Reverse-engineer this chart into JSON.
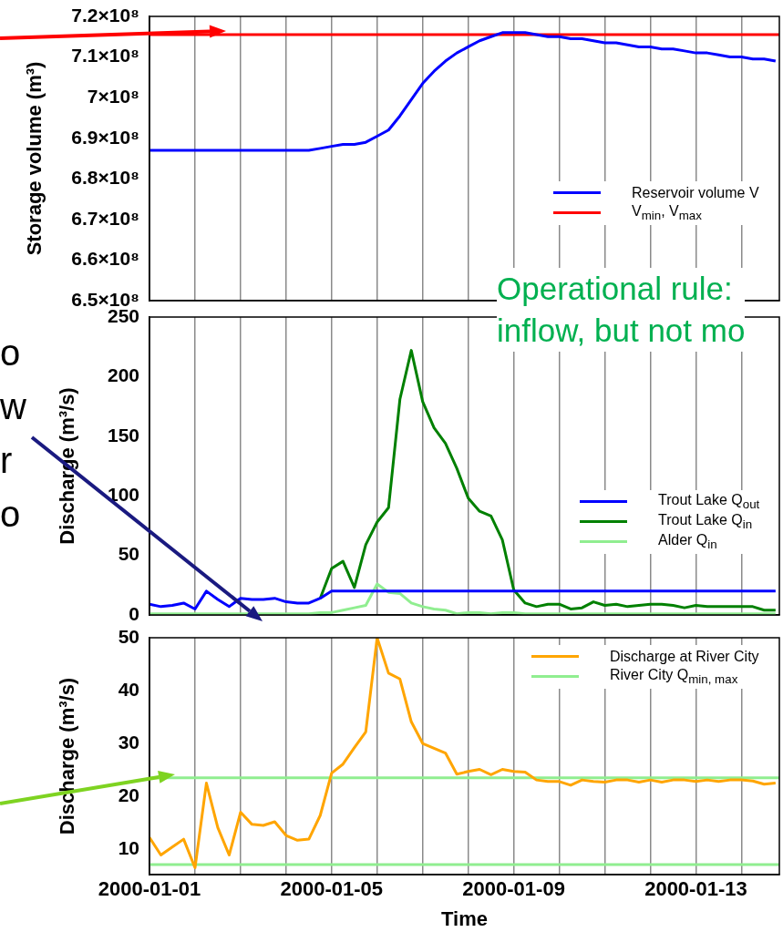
{
  "chart_data": [
    {
      "type": "line",
      "ylabel": "Storage volume (m³)",
      "x": [
        "2000-01-01T00:00",
        "2000-01-01T06:00",
        "2000-01-01T12:00",
        "2000-01-01T18:00",
        "2000-01-02T00:00",
        "2000-01-02T06:00",
        "2000-01-02T12:00",
        "2000-01-02T18:00",
        "2000-01-03T00:00",
        "2000-01-03T06:00",
        "2000-01-03T12:00",
        "2000-01-03T18:00",
        "2000-01-04T00:00",
        "2000-01-04T06:00",
        "2000-01-04T12:00",
        "2000-01-04T18:00",
        "2000-01-05T00:00",
        "2000-01-05T06:00",
        "2000-01-05T12:00",
        "2000-01-05T18:00",
        "2000-01-06T00:00",
        "2000-01-06T06:00",
        "2000-01-06T12:00",
        "2000-01-06T18:00",
        "2000-01-07T00:00",
        "2000-01-07T06:00",
        "2000-01-07T12:00",
        "2000-01-07T18:00",
        "2000-01-08T00:00",
        "2000-01-08T06:00",
        "2000-01-08T12:00",
        "2000-01-08T18:00",
        "2000-01-09T00:00",
        "2000-01-09T06:00",
        "2000-01-09T12:00",
        "2000-01-09T18:00",
        "2000-01-10T00:00",
        "2000-01-10T06:00",
        "2000-01-10T12:00",
        "2000-01-10T18:00",
        "2000-01-11T00:00",
        "2000-01-11T06:00",
        "2000-01-11T12:00",
        "2000-01-11T18:00",
        "2000-01-12T00:00",
        "2000-01-12T06:00",
        "2000-01-12T12:00",
        "2000-01-12T18:00",
        "2000-01-13T00:00",
        "2000-01-13T06:00",
        "2000-01-13T12:00",
        "2000-01-13T18:00",
        "2000-01-14T00:00",
        "2000-01-14T06:00",
        "2000-01-14T12:00",
        "2000-01-14T18:00"
      ],
      "xlim": [
        "2000-01-01",
        "2000-01-14T20:00"
      ],
      "xticks": [
        "2000-01-01",
        {
          "value": "2000-01-02",
          "label": null
        },
        {
          "value": "2000-01-03",
          "label": null
        },
        {
          "value": "2000-01-04",
          "label": null
        },
        "2000-01-05",
        {
          "value": "2000-01-06",
          "label": null
        },
        {
          "value": "2000-01-07",
          "label": null
        },
        {
          "value": "2000-01-08",
          "label": null
        },
        "2000-01-09",
        {
          "value": "2000-01-10",
          "label": null
        },
        {
          "value": "2000-01-11",
          "label": null
        },
        {
          "value": "2000-01-12",
          "label": null
        },
        "2000-01-13",
        {
          "value": "2000-01-14",
          "label": null
        }
      ],
      "ylim": [
        650000000,
        720000000
      ],
      "yticks": [
        {
          "value": 650000000,
          "label": "6.5×10⁸"
        },
        {
          "value": 660000000,
          "label": "6.6×10⁸"
        },
        {
          "value": 670000000,
          "label": "6.7×10⁸"
        },
        {
          "value": 680000000,
          "label": "6.8×10⁸"
        },
        {
          "value": 690000000,
          "label": "6.9×10⁸"
        },
        {
          "value": 700000000,
          "label": "7×10⁸"
        },
        {
          "value": 710000000,
          "label": "7.1×10⁸"
        },
        {
          "value": 720000000,
          "label": "7.2×10⁸"
        }
      ],
      "series": [
        {
          "name": "Reservoir volume V",
          "color": "#0000ff",
          "values": [
            687000000,
            687000000,
            687000000,
            687000000,
            687000000,
            687000000,
            687000000,
            687000000,
            687000000,
            687000000,
            687000000,
            687000000,
            687000000,
            687000000,
            687000000,
            687500000,
            688000000,
            688500000,
            688500000,
            689000000,
            690500000,
            692000000,
            695500000,
            699500000,
            703500000,
            706500000,
            709000000,
            711000000,
            712500000,
            714000000,
            715000000,
            716000000,
            716000000,
            716000000,
            715500000,
            715000000,
            715000000,
            714500000,
            714500000,
            714000000,
            713500000,
            713500000,
            713000000,
            712500000,
            712500000,
            712000000,
            712000000,
            711500000,
            711000000,
            711000000,
            710500000,
            710000000,
            710000000,
            709500000,
            709500000,
            709000000
          ]
        },
        {
          "name": "V$_{min}$, V$_{max}$",
          "color": "#ff0000",
          "x": [
            "2000-01-01",
            "2000-01-14T20:00"
          ],
          "values": [
            715500000,
            715500000
          ]
        }
      ],
      "grid": "x",
      "legend": "right",
      "tick_labels": "y"
    },
    {
      "type": "line",
      "ylabel": "Discharge (m³/s)",
      "x": [
        "2000-01-01T00:00",
        "2000-01-01T06:00",
        "2000-01-01T12:00",
        "2000-01-01T18:00",
        "2000-01-02T00:00",
        "2000-01-02T06:00",
        "2000-01-02T12:00",
        "2000-01-02T18:00",
        "2000-01-03T00:00",
        "2000-01-03T06:00",
        "2000-01-03T12:00",
        "2000-01-03T18:00",
        "2000-01-04T00:00",
        "2000-01-04T06:00",
        "2000-01-04T12:00",
        "2000-01-04T18:00",
        "2000-01-05T00:00",
        "2000-01-05T06:00",
        "2000-01-05T12:00",
        "2000-01-05T18:00",
        "2000-01-06T00:00",
        "2000-01-06T06:00",
        "2000-01-06T12:00",
        "2000-01-06T18:00",
        "2000-01-07T00:00",
        "2000-01-07T06:00",
        "2000-01-07T12:00",
        "2000-01-07T18:00",
        "2000-01-08T00:00",
        "2000-01-08T06:00",
        "2000-01-08T12:00",
        "2000-01-08T18:00",
        "2000-01-09T00:00",
        "2000-01-09T06:00",
        "2000-01-09T12:00",
        "2000-01-09T18:00",
        "2000-01-10T00:00",
        "2000-01-10T06:00",
        "2000-01-10T12:00",
        "2000-01-10T18:00",
        "2000-01-11T00:00",
        "2000-01-11T06:00",
        "2000-01-11T12:00",
        "2000-01-11T18:00",
        "2000-01-12T00:00",
        "2000-01-12T06:00",
        "2000-01-12T12:00",
        "2000-01-12T18:00",
        "2000-01-13T00:00",
        "2000-01-13T06:00",
        "2000-01-13T12:00",
        "2000-01-13T18:00",
        "2000-01-14T00:00",
        "2000-01-14T06:00",
        "2000-01-14T12:00",
        "2000-01-14T18:00"
      ],
      "xlim": [
        "2000-01-01",
        "2000-01-14T20:00"
      ],
      "xticks": [
        "2000-01-01",
        {
          "value": "2000-01-02",
          "label": null
        },
        {
          "value": "2000-01-03",
          "label": null
        },
        {
          "value": "2000-01-04",
          "label": null
        },
        "2000-01-05",
        {
          "value": "2000-01-06",
          "label": null
        },
        {
          "value": "2000-01-07",
          "label": null
        },
        {
          "value": "2000-01-08",
          "label": null
        },
        "2000-01-09",
        {
          "value": "2000-01-10",
          "label": null
        },
        {
          "value": "2000-01-11",
          "label": null
        },
        {
          "value": "2000-01-12",
          "label": null
        },
        "2000-01-13",
        {
          "value": "2000-01-14",
          "label": null
        }
      ],
      "ylim": [
        0,
        250
      ],
      "yticks": [
        0,
        50,
        100,
        150,
        200,
        250
      ],
      "series": [
        {
          "name": "Trout Lake Q$_{out}$",
          "color": "#0000ff",
          "values": [
            9,
            7,
            8,
            10,
            5,
            20,
            13,
            7,
            14,
            13,
            13,
            14,
            11,
            10,
            10,
            14,
            20,
            20,
            20,
            20,
            20,
            20,
            20,
            20,
            20,
            20,
            20,
            20,
            20,
            20,
            20,
            20,
            20,
            20,
            20,
            20,
            20,
            20,
            20,
            20,
            20,
            20,
            20,
            20,
            20,
            20,
            20,
            20,
            20,
            20,
            20,
            20,
            20,
            20,
            20,
            20
          ]
        },
        {
          "name": "Trout Lake Q$_{in}$",
          "color": "#008000",
          "values": [
            null,
            null,
            null,
            null,
            null,
            null,
            null,
            null,
            null,
            null,
            null,
            null,
            null,
            null,
            null,
            14,
            39,
            45,
            23,
            59,
            78,
            90,
            181,
            222,
            179,
            157,
            144,
            123,
            98,
            87,
            83,
            63,
            21,
            10,
            7,
            9,
            9,
            5,
            6,
            11,
            8,
            9,
            7,
            8,
            9,
            9,
            8,
            6,
            8,
            7,
            7,
            7,
            7,
            7,
            4,
            4
          ]
        },
        {
          "name": "Alder Q$_{in}$",
          "color": "#90ee90",
          "values": [
            1,
            1,
            1,
            1,
            1,
            1,
            1,
            1,
            1,
            1,
            1,
            1,
            1,
            1,
            1,
            2,
            2,
            4,
            6,
            8,
            26,
            19,
            18,
            10,
            7,
            5,
            4,
            1,
            2,
            2,
            1,
            2,
            2,
            1,
            1,
            1,
            1,
            1,
            1,
            1,
            1,
            1,
            1,
            1,
            1,
            1,
            1,
            1,
            1,
            1,
            1,
            1,
            1,
            1,
            1,
            1
          ]
        }
      ],
      "annotations": [
        "Operational rule:\ninflow, but not mo",
        "o\nw\nr\no"
      ],
      "grid": "x",
      "legend": "right",
      "tick_labels": "y"
    },
    {
      "type": "line",
      "ylabel": "Discharge (m³/s)",
      "xlabel": "Time",
      "x": [
        "2000-01-01T00:00",
        "2000-01-01T06:00",
        "2000-01-01T12:00",
        "2000-01-01T18:00",
        "2000-01-02T00:00",
        "2000-01-02T06:00",
        "2000-01-02T12:00",
        "2000-01-02T18:00",
        "2000-01-03T00:00",
        "2000-01-03T06:00",
        "2000-01-03T12:00",
        "2000-01-03T18:00",
        "2000-01-04T00:00",
        "2000-01-04T06:00",
        "2000-01-04T12:00",
        "2000-01-04T18:00",
        "2000-01-05T00:00",
        "2000-01-05T06:00",
        "2000-01-05T12:00",
        "2000-01-05T18:00",
        "2000-01-06T00:00",
        "2000-01-06T06:00",
        "2000-01-06T12:00",
        "2000-01-06T18:00",
        "2000-01-07T00:00",
        "2000-01-07T06:00",
        "2000-01-07T12:00",
        "2000-01-07T18:00",
        "2000-01-08T00:00",
        "2000-01-08T06:00",
        "2000-01-08T12:00",
        "2000-01-08T18:00",
        "2000-01-09T00:00",
        "2000-01-09T06:00",
        "2000-01-09T12:00",
        "2000-01-09T18:00",
        "2000-01-10T00:00",
        "2000-01-10T06:00",
        "2000-01-10T12:00",
        "2000-01-10T18:00",
        "2000-01-11T00:00",
        "2000-01-11T06:00",
        "2000-01-11T12:00",
        "2000-01-11T18:00",
        "2000-01-12T00:00",
        "2000-01-12T06:00",
        "2000-01-12T12:00",
        "2000-01-12T18:00",
        "2000-01-13T00:00",
        "2000-01-13T06:00",
        "2000-01-13T12:00",
        "2000-01-13T18:00",
        "2000-01-14T00:00",
        "2000-01-14T06:00",
        "2000-01-14T12:00",
        "2000-01-14T18:00"
      ],
      "xlim": [
        "2000-01-01",
        "2000-01-14T20:00"
      ],
      "xticks": [
        "2000-01-01",
        {
          "value": "2000-01-02",
          "label": null
        },
        {
          "value": "2000-01-03",
          "label": null
        },
        {
          "value": "2000-01-04",
          "label": null
        },
        "2000-01-05",
        {
          "value": "2000-01-06",
          "label": null
        },
        {
          "value": "2000-01-07",
          "label": null
        },
        {
          "value": "2000-01-08",
          "label": null
        },
        "2000-01-09",
        {
          "value": "2000-01-10",
          "label": null
        },
        {
          "value": "2000-01-11",
          "label": null
        },
        {
          "value": "2000-01-12",
          "label": null
        },
        "2000-01-13",
        {
          "value": "2000-01-14",
          "label": null
        }
      ],
      "ylim": [
        5.2,
        50
      ],
      "yticks": [
        10,
        20,
        30,
        40,
        50
      ],
      "series": [
        {
          "name": "Discharge at River City",
          "color": "#ffa500",
          "values": [
            12.2,
            8.9,
            10.4,
            11.9,
            6.5,
            22.5,
            14.1,
            8.9,
            17.0,
            14.7,
            14.5,
            15.2,
            12.6,
            11.7,
            11.9,
            16.4,
            24.4,
            26.1,
            29.2,
            32.2,
            50,
            43.3,
            42.2,
            34.1,
            30.0,
            29.1,
            28.2,
            24.2,
            24.7,
            25.1,
            24.1,
            25.1,
            24.7,
            24.6,
            23.1,
            22.8,
            22.8,
            22.1,
            23.1,
            22.8,
            22.7,
            23.1,
            23.1,
            22.7,
            23.1,
            22.7,
            23.1,
            23.1,
            22.8,
            23.1,
            22.8,
            23.1,
            23.1,
            22.9,
            22.3,
            22.5
          ]
        },
        {
          "name": "River City Q$_{min, max}$",
          "color": "#90ee90",
          "x": [
            "2000-01-01",
            "2000-01-14T20:00"
          ],
          "values": [
            23.5,
            23.5
          ]
        },
        {
          "color": "#90ee90",
          "x": [
            "2000-01-01",
            "2000-01-14T20:00"
          ],
          "values": [
            7.1,
            7.1
          ]
        }
      ],
      "grid": "x",
      "legend": "top right"
    }
  ]
}
